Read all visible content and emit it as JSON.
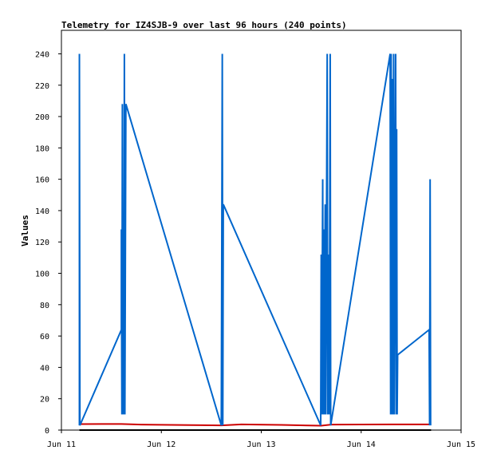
{
  "chart_data": {
    "type": "line",
    "title": "Telemetry for IZ4SJB-9 over last 96 hours (240 points)",
    "xlabel": "",
    "ylabel": "Values",
    "xlim": [
      "Jun 11",
      "Jun 15"
    ],
    "ylim": [
      0,
      255
    ],
    "grid": false,
    "legend": "none",
    "x_ticks": [
      "Jun 11",
      "Jun 12",
      "Jun 13",
      "Jun 14",
      "Jun 15"
    ],
    "y_ticks": [
      0,
      20,
      40,
      60,
      80,
      100,
      120,
      140,
      160,
      180,
      200,
      220,
      240
    ],
    "x_unit": "day of June",
    "series": [
      {
        "color": "#0066cc",
        "points": [
          [
            11.18,
            3
          ],
          [
            11.18,
            240
          ],
          [
            11.185,
            3
          ],
          [
            11.6,
            64
          ],
          [
            11.6,
            128
          ],
          [
            11.605,
            10
          ],
          [
            11.61,
            208
          ],
          [
            11.615,
            10
          ],
          [
            11.62,
            128
          ],
          [
            11.625,
            10
          ],
          [
            11.63,
            240
          ],
          [
            11.635,
            10
          ],
          [
            11.645,
            208
          ],
          [
            12.6,
            3
          ],
          [
            12.605,
            120
          ],
          [
            12.61,
            240
          ],
          [
            12.615,
            3
          ],
          [
            12.62,
            144
          ],
          [
            13.595,
            3
          ],
          [
            13.6,
            112
          ],
          [
            13.605,
            10
          ],
          [
            13.615,
            160
          ],
          [
            13.62,
            10
          ],
          [
            13.625,
            128
          ],
          [
            13.63,
            10
          ],
          [
            13.64,
            144
          ],
          [
            13.645,
            10
          ],
          [
            13.66,
            240
          ],
          [
            13.665,
            10
          ],
          [
            13.675,
            112
          ],
          [
            13.68,
            10
          ],
          [
            13.69,
            240
          ],
          [
            13.695,
            3
          ],
          [
            14.29,
            240
          ],
          [
            14.295,
            10
          ],
          [
            14.3,
            240
          ],
          [
            14.305,
            10
          ],
          [
            14.31,
            224
          ],
          [
            14.315,
            10
          ],
          [
            14.325,
            240
          ],
          [
            14.33,
            10
          ],
          [
            14.345,
            240
          ],
          [
            14.35,
            10
          ],
          [
            14.355,
            192
          ],
          [
            14.36,
            10
          ],
          [
            14.365,
            48
          ],
          [
            14.68,
            64
          ],
          [
            14.685,
            3
          ],
          [
            14.69,
            160
          ],
          [
            14.695,
            3
          ]
        ]
      },
      {
        "color": "#cc0000",
        "points": [
          [
            11.18,
            3.8
          ],
          [
            11.6,
            3.9
          ],
          [
            11.8,
            3.5
          ],
          [
            12.3,
            3.2
          ],
          [
            12.6,
            3.0
          ],
          [
            12.8,
            3.6
          ],
          [
            13.2,
            3.3
          ],
          [
            13.6,
            2.8
          ],
          [
            13.7,
            3.5
          ],
          [
            14.3,
            3.6
          ],
          [
            14.7,
            3.6
          ]
        ]
      },
      {
        "color": "#000000",
        "points": [
          [
            11.18,
            0
          ],
          [
            14.7,
            0
          ]
        ]
      }
    ]
  }
}
